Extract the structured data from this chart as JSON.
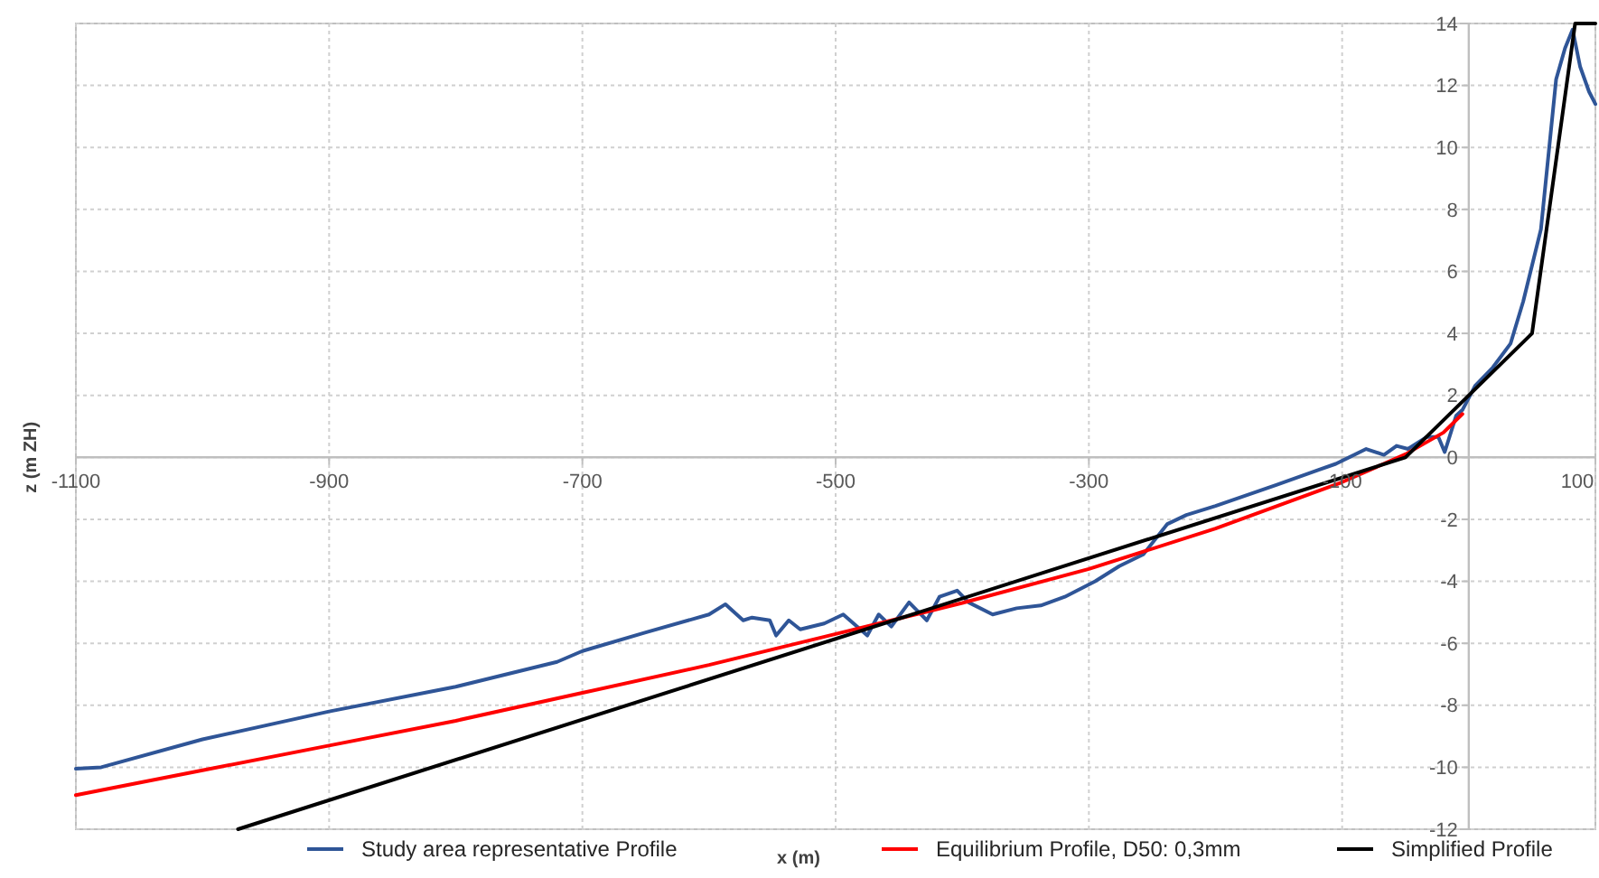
{
  "chart_data": {
    "type": "line",
    "xlabel": "x (m)",
    "ylabel": "z (m ZH)",
    "xlim": [
      -1100,
      100
    ],
    "ylim": [
      -12,
      14
    ],
    "xticks": [
      -1100,
      -900,
      -700,
      -500,
      -300,
      -100,
      100
    ],
    "yticks": [
      -12,
      -10,
      -8,
      -6,
      -4,
      -2,
      0,
      2,
      4,
      6,
      8,
      10,
      12,
      14
    ],
    "grid": true,
    "legend": "bottom",
    "marker": "none",
    "line_style": "solid",
    "series": [
      {
        "name": "Study area representative Profile",
        "color": "#2f5597",
        "x": [
          -1100,
          -1080,
          -1000,
          -900,
          -800,
          -720,
          -700,
          -650,
          -600,
          -587,
          -573,
          -566,
          -552,
          -547,
          -537,
          -528,
          -509,
          -494,
          -475,
          -466,
          -456,
          -442,
          -428,
          -418,
          -404,
          -395,
          -376,
          -357,
          -338,
          -319,
          -295,
          -276,
          -257,
          -238,
          -223,
          -200,
          -152,
          -119,
          -105,
          -81,
          -67,
          -57,
          -48,
          -33,
          -24,
          -19,
          -10,
          -5,
          5,
          19,
          33,
          43,
          57,
          69,
          76,
          78,
          82,
          88,
          95,
          100
        ],
        "values": [
          -10.05,
          -10.0,
          -9.1,
          -8.2,
          -7.4,
          -6.6,
          -6.25,
          -5.65,
          -5.07,
          -4.74,
          -5.26,
          -5.17,
          -5.26,
          -5.75,
          -5.26,
          -5.55,
          -5.36,
          -5.07,
          -5.75,
          -5.07,
          -5.46,
          -4.68,
          -5.26,
          -4.5,
          -4.3,
          -4.68,
          -5.07,
          -4.87,
          -4.78,
          -4.5,
          -4.0,
          -3.51,
          -3.13,
          -2.15,
          -1.86,
          -1.57,
          -0.89,
          -0.41,
          -0.21,
          0.27,
          0.08,
          0.37,
          0.27,
          0.66,
          0.66,
          0.17,
          1.34,
          1.53,
          2.31,
          2.9,
          3.67,
          5.03,
          7.36,
          12.2,
          13.2,
          13.4,
          13.8,
          12.6,
          11.8,
          11.4
        ]
      },
      {
        "name": "Equilibrium Profile, D50: 0,3mm",
        "color": "#ff0000",
        "x": [
          -1100,
          -1000,
          -900,
          -800,
          -700,
          -600,
          -500,
          -400,
          -300,
          -200,
          -100,
          -50,
          -20,
          -5
        ],
        "values": [
          -10.9,
          -10.1,
          -9.3,
          -8.5,
          -7.6,
          -6.7,
          -5.7,
          -4.7,
          -3.6,
          -2.3,
          -0.8,
          0.1,
          0.8,
          1.4
        ]
      },
      {
        "name": "Simplified Profile",
        "color": "#000000",
        "x": [
          -972,
          -50,
          50,
          84,
          100
        ],
        "values": [
          -12,
          0,
          4,
          14,
          14
        ]
      }
    ]
  }
}
